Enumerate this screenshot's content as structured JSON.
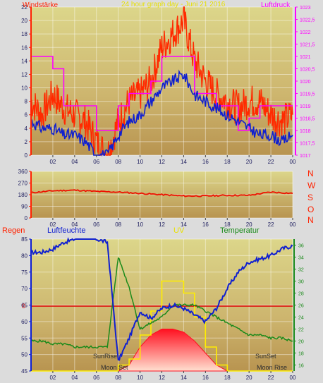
{
  "top_panel": {
    "title": "24 hour graph day - Juni 21 2016",
    "left_label": "Windstärke",
    "right_label": "Luftdruck"
  },
  "mid_panel": {
    "compass": [
      "N",
      "W",
      "S",
      "O",
      "N"
    ]
  },
  "bottom_panel": {
    "label_regen": "Regen",
    "label_humidity": "Luftfeuchte",
    "label_uv": "UV",
    "label_temperature": "Temperatur",
    "annotations": [
      "SunRise",
      "Moon Set",
      "SunSet",
      "Moon Rise"
    ]
  },
  "colors": {
    "wind_gust": "#ff2a00",
    "wind_avg": "#1020d0",
    "pressure": "#ff00ff",
    "direction": "#ee1100",
    "humidity": "#1020d0",
    "temperature": "#1a8a1a",
    "uv": "#ffee00",
    "solar": "#ff1020",
    "zero_line": "#dd0000"
  },
  "chart_data": [
    {
      "type": "line",
      "x_ticks": [
        "02",
        "04",
        "06",
        "08",
        "10",
        "12",
        "14",
        "16",
        "18",
        "20",
        "22",
        "00"
      ],
      "left_axis": {
        "ylim": [
          0,
          22
        ],
        "ticks": [
          "0",
          "2",
          "4",
          "6",
          "8",
          "10",
          "12",
          "14",
          "16",
          "18",
          "20",
          "22"
        ]
      },
      "right_axis": {
        "ylim": [
          1017,
          1023
        ],
        "ticks": [
          "1017",
          "1017,5",
          "1018",
          "1018,5",
          "1019",
          "1019,5",
          "1020",
          "1020,5",
          "1021",
          "1021,5",
          "1022",
          "1022,5",
          "1023"
        ]
      },
      "x": [
        0,
        1,
        2,
        3,
        4,
        5,
        6,
        7,
        8,
        9,
        10,
        11,
        12,
        13,
        14,
        15,
        16,
        17,
        18,
        19,
        20,
        21,
        22,
        23,
        24
      ],
      "series": [
        {
          "axis": "left",
          "values": [
            8,
            6,
            9,
            7,
            6,
            5,
            2,
            0,
            5,
            8,
            9,
            11,
            16,
            18,
            20,
            14,
            11,
            9,
            8,
            7,
            8,
            8,
            6,
            5,
            6
          ]
        },
        {
          "axis": "left",
          "values": [
            5,
            4,
            4,
            3,
            3,
            2,
            0,
            0,
            3,
            5,
            6,
            8,
            10,
            11,
            12,
            9,
            8,
            7,
            6,
            5,
            4,
            3,
            3,
            2,
            3
          ]
        },
        {
          "axis": "right",
          "values": [
            1021,
            1021,
            1020.5,
            1019,
            1019,
            1019,
            1018,
            1018,
            1019,
            1019.5,
            1019.5,
            1020,
            1021,
            1021,
            1021,
            1019.5,
            1019.5,
            1019,
            1019,
            1018,
            1018.5,
            1019,
            1019,
            1019,
            1019
          ]
        }
      ]
    },
    {
      "type": "line",
      "x_ticks": [
        "02",
        "04",
        "06",
        "08",
        "10",
        "12",
        "14",
        "16",
        "18",
        "20",
        "22",
        "00"
      ],
      "ylim": [
        0,
        360
      ],
      "y_ticks": [
        "0",
        "90",
        "180",
        "270",
        "360"
      ],
      "x": [
        0,
        2,
        4,
        6,
        8,
        10,
        12,
        14,
        16,
        18,
        20,
        22,
        24
      ],
      "values": [
        195,
        210,
        215,
        205,
        200,
        190,
        180,
        170,
        170,
        175,
        175,
        200,
        190
      ]
    },
    {
      "type": "area",
      "x_ticks": [
        "02",
        "04",
        "06",
        "08",
        "10",
        "12",
        "14",
        "16",
        "18",
        "20",
        "22",
        "00"
      ],
      "left_axis": {
        "ylim": [
          45,
          85
        ],
        "ticks": [
          "45",
          "50",
          "55",
          "60",
          "65",
          "70",
          "75",
          "80",
          "85"
        ]
      },
      "right_axis": {
        "ylim": [
          15,
          37
        ],
        "ticks": [
          "16",
          "18",
          "20",
          "22",
          "24",
          "26",
          "28",
          "30",
          "32",
          "34",
          "36"
        ]
      },
      "zero_line_label": "0",
      "x": [
        0,
        1,
        2,
        3,
        4,
        5,
        6,
        7,
        8,
        9,
        10,
        11,
        12,
        13,
        14,
        15,
        16,
        17,
        18,
        19,
        20,
        21,
        22,
        23,
        24
      ],
      "series": [
        {
          "axis": "left",
          "values": [
            81,
            81,
            82,
            84,
            85,
            86,
            85,
            84,
            48,
            55,
            63,
            61,
            64,
            65,
            64,
            62,
            60,
            64,
            70,
            75,
            78,
            79,
            80,
            82,
            83
          ]
        },
        {
          "axis": "right",
          "values": [
            20,
            20,
            19.5,
            19.5,
            19,
            19,
            19,
            19,
            34,
            29,
            22,
            23,
            24,
            26,
            26,
            26,
            25,
            24,
            23,
            22,
            21,
            21,
            20.5,
            20.5,
            20
          ]
        },
        {
          "axis": "right",
          "values": [
            15,
            15,
            15,
            15,
            15,
            15,
            15,
            15,
            16,
            17,
            21,
            25,
            30,
            30,
            28,
            24,
            19,
            16,
            15,
            15,
            15,
            15,
            15,
            15,
            15
          ]
        },
        {
          "axis": "right",
          "values": [
            15,
            15,
            15,
            15,
            15,
            15,
            15,
            15,
            15,
            16,
            19,
            21,
            22,
            22,
            21.5,
            20,
            18,
            16,
            15,
            15,
            15,
            15,
            15,
            15,
            15
          ]
        }
      ]
    }
  ]
}
